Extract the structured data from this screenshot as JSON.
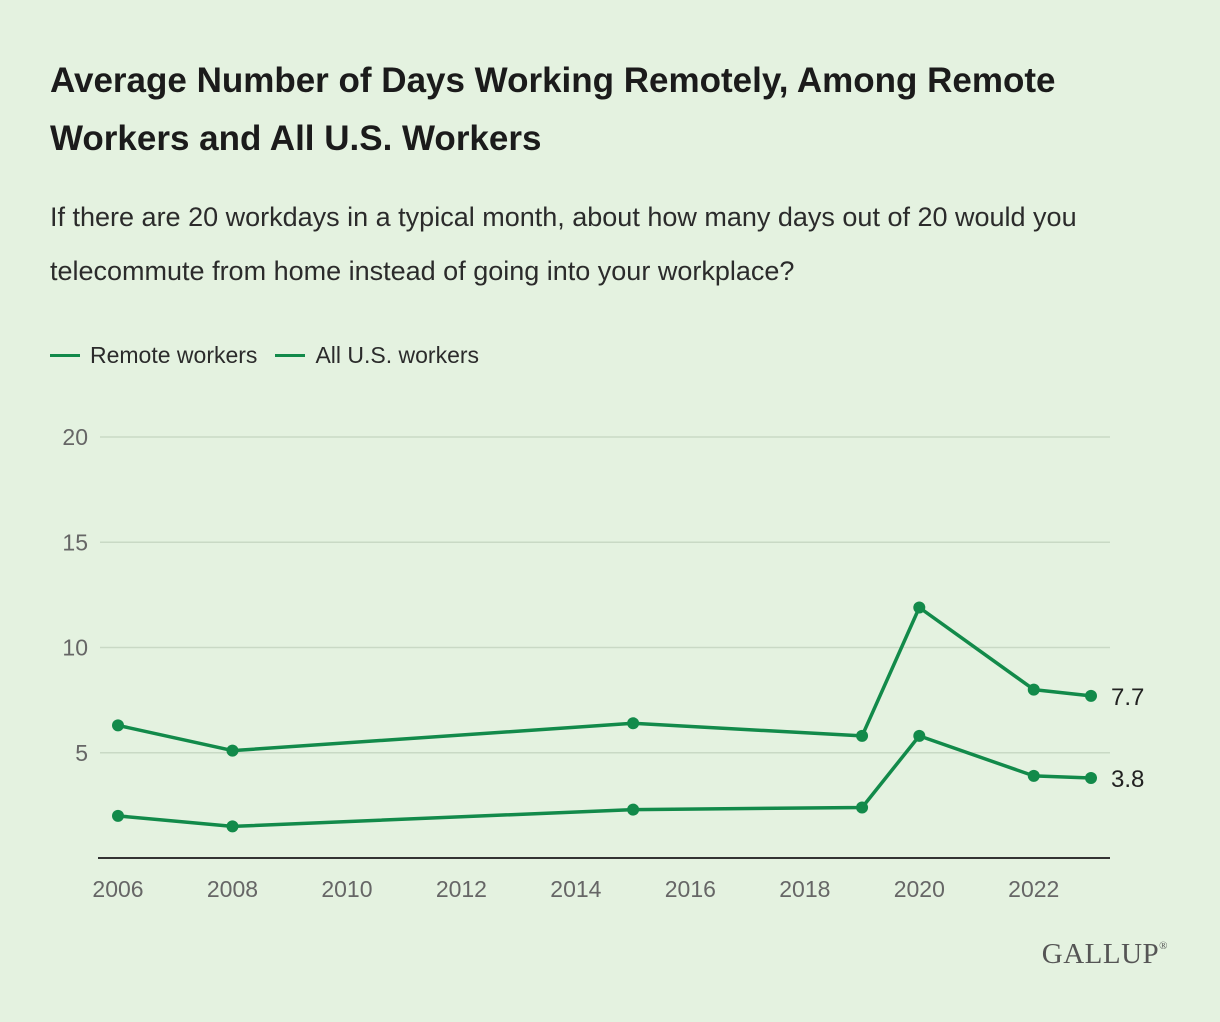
{
  "title": "Average Number of Days Working Remotely, Among Remote Workers and All U.S. Workers",
  "subtitle": "If there are 20 workdays in a typical month, about how many days out of 20 would you telecommute from home instead of going into your workplace?",
  "brand": "GALLUP",
  "brand_mark": "®",
  "colors": {
    "line": "#128a4a",
    "background": "#e4f2e0",
    "grid": "#c9d9c5",
    "axis": "#333333",
    "tick_text": "#666666"
  },
  "chart_data": {
    "type": "line",
    "title": "Average Number of Days Working Remotely, Among Remote Workers and All U.S. Workers",
    "xlabel": "",
    "ylabel": "",
    "ylim": [
      0,
      20
    ],
    "xlim": [
      2006,
      2023
    ],
    "yticks": [
      5,
      10,
      15,
      20
    ],
    "xticks": [
      2006,
      2008,
      2010,
      2012,
      2014,
      2016,
      2018,
      2020,
      2022
    ],
    "grid": true,
    "legend_position": "top-left",
    "series": [
      {
        "name": "Remote workers",
        "x": [
          2006,
          2008,
          2015,
          2019,
          2020,
          2022,
          2023
        ],
        "values": [
          6.3,
          5.1,
          6.4,
          5.8,
          11.9,
          8.0,
          7.7
        ],
        "end_label": "7.7"
      },
      {
        "name": "All U.S. workers",
        "x": [
          2006,
          2008,
          2015,
          2019,
          2020,
          2022,
          2023
        ],
        "values": [
          2.0,
          1.5,
          2.3,
          2.4,
          5.8,
          3.9,
          3.8
        ],
        "end_label": "3.8"
      }
    ]
  }
}
